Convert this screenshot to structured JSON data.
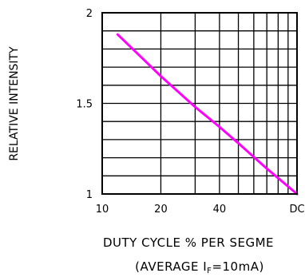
{
  "chart_data": {
    "type": "line",
    "ylabel": "RELATIVE INTENSITY",
    "xlabel": "DUTY CYCLE % PER SEGME",
    "xlabel_sub_prefix": "(AVERAGE I",
    "xlabel_sub_subscript": "F",
    "xlabel_sub_suffix": "=10mA)",
    "x_scale": "log",
    "xlim": [
      10,
      100
    ],
    "ylim": [
      1,
      2
    ],
    "grid": true,
    "y_ticks": [
      {
        "value": 1,
        "label": "1"
      },
      {
        "value": 1.5,
        "label": "1.5"
      },
      {
        "value": 2,
        "label": "2"
      }
    ],
    "x_ticks": [
      {
        "value": 10,
        "label": "10"
      },
      {
        "value": 20,
        "label": "20"
      },
      {
        "value": 40,
        "label": "40"
      },
      {
        "value": 100,
        "label": "DC"
      }
    ],
    "series": [
      {
        "color": "#ff00ff",
        "points": [
          {
            "x": 12,
            "y": 1.88
          },
          {
            "x": 15,
            "y": 1.78
          },
          {
            "x": 20,
            "y": 1.65
          },
          {
            "x": 30,
            "y": 1.48
          },
          {
            "x": 40,
            "y": 1.37
          },
          {
            "x": 50,
            "y": 1.28
          },
          {
            "x": 70,
            "y": 1.14
          },
          {
            "x": 100,
            "y": 1.0
          }
        ]
      }
    ]
  }
}
